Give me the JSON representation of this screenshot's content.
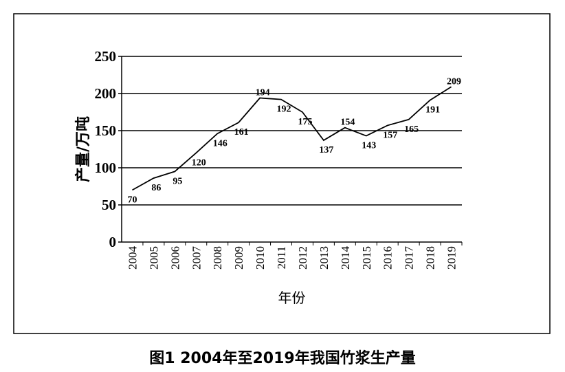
{
  "chart_data": {
    "type": "line",
    "title": "",
    "xlabel": "年份",
    "ylabel": "产量/万吨",
    "categories": [
      "2004",
      "2005",
      "2006",
      "2007",
      "2008",
      "2009",
      "2010",
      "2011",
      "2012",
      "2013",
      "2014",
      "2015",
      "2016",
      "2017",
      "2018",
      "2019"
    ],
    "values": [
      70,
      86,
      95,
      120,
      146,
      161,
      194,
      192,
      175,
      137,
      154,
      143,
      157,
      165,
      191,
      209
    ],
    "data_labels": [
      "70",
      "86",
      "95",
      "120",
      "146",
      "161",
      "194",
      "192",
      "175",
      "137",
      "154",
      "143",
      "157",
      "165",
      "191",
      "209"
    ],
    "ylim": [
      0,
      250
    ],
    "yticks": [
      0,
      50,
      100,
      150,
      200,
      250
    ],
    "grid": "horizontal",
    "line_color": "#000000"
  },
  "caption": "图1    2004年至2019年我国竹浆生产量"
}
